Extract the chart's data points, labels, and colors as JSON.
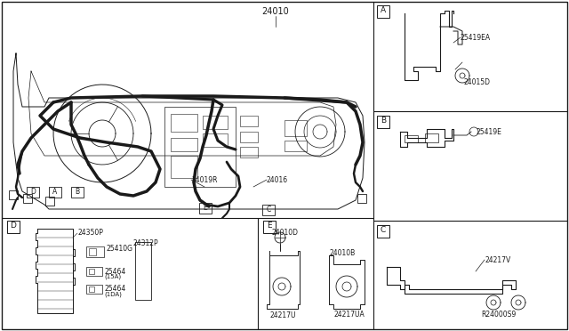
{
  "background_color": "#ffffff",
  "line_color": "#1a1a1a",
  "fig_width": 6.4,
  "fig_height": 3.72,
  "dpi": 100,
  "labels": {
    "main_part": "24010",
    "sub1": "24019R",
    "sub2": "24016",
    "sub3": "24015D",
    "sub4": "25419EA",
    "sub5": "25419E",
    "sub6": "24217V",
    "sub7": "24350P",
    "sub8": "24312P",
    "sub9": "25410G",
    "sub10": "(15A)",
    "sub10b": "25464",
    "sub11": "(1DA)",
    "sub11b": "25464",
    "sub12": "24010D",
    "sub13": "24010B",
    "sub14": "24217U",
    "sub15": "24217UA",
    "ref_code": "R24000S9"
  }
}
